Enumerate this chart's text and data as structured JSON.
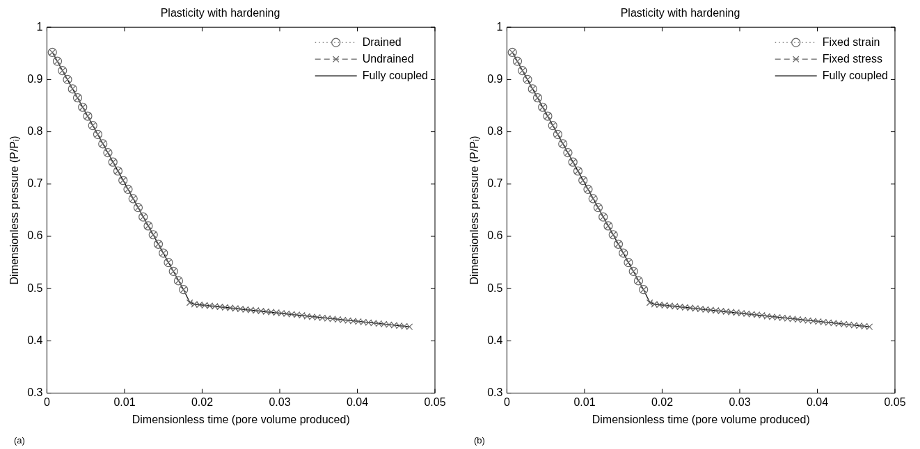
{
  "chart_data": [
    {
      "type": "line",
      "title": "Plasticity with hardening",
      "xlabel": "Dimensionless time (pore volume produced)",
      "ylabel": "Dimensionless pressure (P/Pᵢ)",
      "xlim": [
        0,
        0.05
      ],
      "xticks": [
        0,
        0.01,
        0.02,
        0.03,
        0.04,
        0.05
      ],
      "ylim": [
        0.3,
        1
      ],
      "yticks": [
        0.3,
        0.4,
        0.5,
        0.6,
        0.7,
        0.8,
        0.9,
        1
      ],
      "legend": "top right",
      "grid": false,
      "annotations": [
        "(a)"
      ],
      "series": [
        {
          "name": "Drained",
          "color": "#666666",
          "marker": "circle",
          "line_style": "dotted",
          "x": [
            0.0007,
            0.00135,
            0.002,
            0.00265,
            0.0033,
            0.00395,
            0.0046,
            0.00525,
            0.0059,
            0.00655,
            0.0072,
            0.00785,
            0.0085,
            0.00915,
            0.0098,
            0.01045,
            0.0111,
            0.01175,
            0.0124,
            0.01305,
            0.0137,
            0.01435,
            0.015,
            0.01565,
            0.0163,
            0.01695,
            0.0176
          ],
          "values": [
            0.952,
            0.935,
            0.917,
            0.9,
            0.882,
            0.865,
            0.847,
            0.83,
            0.812,
            0.795,
            0.777,
            0.76,
            0.742,
            0.725,
            0.707,
            0.69,
            0.672,
            0.655,
            0.637,
            0.62,
            0.603,
            0.585,
            0.568,
            0.55,
            0.533,
            0.515,
            0.498
          ]
        },
        {
          "name": "Undrained",
          "color": "#666666",
          "marker": "cross",
          "line_style": "dashed",
          "x": [
            0.0007,
            0.00135,
            0.002,
            0.00265,
            0.0033,
            0.00395,
            0.0046,
            0.00525,
            0.0059,
            0.00655,
            0.0072,
            0.00785,
            0.0085,
            0.00915,
            0.0098,
            0.01045,
            0.0111,
            0.01175,
            0.0124,
            0.01305,
            0.0137,
            0.01435,
            0.015,
            0.01565,
            0.0163,
            0.01695,
            0.0176,
            0.0184,
            0.019,
            0.01966,
            0.02032,
            0.02098,
            0.02164,
            0.0223,
            0.02296,
            0.02362,
            0.02428,
            0.02494,
            0.0256,
            0.02626,
            0.02692,
            0.02758,
            0.02824,
            0.0289,
            0.02956,
            0.03022,
            0.03088,
            0.03154,
            0.0322,
            0.03286,
            0.03352,
            0.03418,
            0.03484,
            0.0355,
            0.03616,
            0.03682,
            0.03748,
            0.03814,
            0.0388,
            0.03946,
            0.04012,
            0.04078,
            0.04144,
            0.0421,
            0.04276,
            0.04342,
            0.04408,
            0.04474,
            0.0454,
            0.04606,
            0.04672
          ],
          "values": [
            0.952,
            0.935,
            0.917,
            0.9,
            0.882,
            0.865,
            0.847,
            0.83,
            0.812,
            0.795,
            0.777,
            0.76,
            0.742,
            0.725,
            0.707,
            0.69,
            0.672,
            0.655,
            0.637,
            0.62,
            0.603,
            0.585,
            0.568,
            0.55,
            0.533,
            0.515,
            0.498,
            0.473,
            0.47,
            0.469,
            0.468,
            0.467,
            0.466,
            0.465,
            0.464,
            0.463,
            0.462,
            0.461,
            0.46,
            0.459,
            0.458,
            0.457,
            0.456,
            0.455,
            0.454,
            0.453,
            0.452,
            0.451,
            0.45,
            0.449,
            0.447,
            0.446,
            0.445,
            0.444,
            0.443,
            0.442,
            0.441,
            0.44,
            0.439,
            0.438,
            0.437,
            0.436,
            0.435,
            0.434,
            0.433,
            0.432,
            0.431,
            0.43,
            0.429,
            0.428,
            0.427
          ]
        },
        {
          "name": "Fully coupled",
          "color": "#000000",
          "marker": "none",
          "line_style": "solid",
          "x": [
            0.0007,
            0.0176,
            0.0184,
            0.019,
            0.0467
          ],
          "values": [
            0.952,
            0.498,
            0.474,
            0.47,
            0.427
          ]
        }
      ]
    },
    {
      "type": "line",
      "title": "Plasticity with hardening",
      "xlabel": "Dimensionless time (pore volume produced)",
      "ylabel": "Dimensionless pressure (P/Pᵢ)",
      "xlim": [
        0,
        0.05
      ],
      "xticks": [
        0,
        0.01,
        0.02,
        0.03,
        0.04,
        0.05
      ],
      "ylim": [
        0.3,
        1
      ],
      "yticks": [
        0.3,
        0.4,
        0.5,
        0.6,
        0.7,
        0.8,
        0.9,
        1
      ],
      "legend": "top right",
      "grid": false,
      "annotations": [
        "(b)"
      ],
      "series": [
        {
          "name": "Fixed strain",
          "color": "#666666",
          "marker": "circle",
          "line_style": "dotted",
          "x": [
            0.0007,
            0.00135,
            0.002,
            0.00265,
            0.0033,
            0.00395,
            0.0046,
            0.00525,
            0.0059,
            0.00655,
            0.0072,
            0.00785,
            0.0085,
            0.00915,
            0.0098,
            0.01045,
            0.0111,
            0.01175,
            0.0124,
            0.01305,
            0.0137,
            0.01435,
            0.015,
            0.01565,
            0.0163,
            0.01695,
            0.0176
          ],
          "values": [
            0.952,
            0.935,
            0.917,
            0.9,
            0.882,
            0.865,
            0.847,
            0.83,
            0.812,
            0.795,
            0.777,
            0.76,
            0.742,
            0.725,
            0.707,
            0.69,
            0.672,
            0.655,
            0.637,
            0.62,
            0.603,
            0.585,
            0.568,
            0.55,
            0.533,
            0.515,
            0.498
          ]
        },
        {
          "name": "Fixed stress",
          "color": "#666666",
          "marker": "cross",
          "line_style": "dashed",
          "x": [
            0.0007,
            0.00135,
            0.002,
            0.00265,
            0.0033,
            0.00395,
            0.0046,
            0.00525,
            0.0059,
            0.00655,
            0.0072,
            0.00785,
            0.0085,
            0.00915,
            0.0098,
            0.01045,
            0.0111,
            0.01175,
            0.0124,
            0.01305,
            0.0137,
            0.01435,
            0.015,
            0.01565,
            0.0163,
            0.01695,
            0.0176,
            0.0184,
            0.019,
            0.01966,
            0.02032,
            0.02098,
            0.02164,
            0.0223,
            0.02296,
            0.02362,
            0.02428,
            0.02494,
            0.0256,
            0.02626,
            0.02692,
            0.02758,
            0.02824,
            0.0289,
            0.02956,
            0.03022,
            0.03088,
            0.03154,
            0.0322,
            0.03286,
            0.03352,
            0.03418,
            0.03484,
            0.0355,
            0.03616,
            0.03682,
            0.03748,
            0.03814,
            0.0388,
            0.03946,
            0.04012,
            0.04078,
            0.04144,
            0.0421,
            0.04276,
            0.04342,
            0.04408,
            0.04474,
            0.0454,
            0.04606,
            0.04672
          ],
          "values": [
            0.952,
            0.935,
            0.917,
            0.9,
            0.882,
            0.865,
            0.847,
            0.83,
            0.812,
            0.795,
            0.777,
            0.76,
            0.742,
            0.725,
            0.707,
            0.69,
            0.672,
            0.655,
            0.637,
            0.62,
            0.603,
            0.585,
            0.568,
            0.55,
            0.533,
            0.515,
            0.498,
            0.473,
            0.47,
            0.469,
            0.468,
            0.467,
            0.466,
            0.465,
            0.464,
            0.463,
            0.462,
            0.461,
            0.46,
            0.459,
            0.458,
            0.457,
            0.456,
            0.455,
            0.454,
            0.453,
            0.452,
            0.451,
            0.45,
            0.449,
            0.447,
            0.446,
            0.445,
            0.444,
            0.443,
            0.442,
            0.441,
            0.44,
            0.439,
            0.438,
            0.437,
            0.436,
            0.435,
            0.434,
            0.433,
            0.432,
            0.431,
            0.43,
            0.429,
            0.428,
            0.427
          ]
        },
        {
          "name": "Fully coupled",
          "color": "#000000",
          "marker": "none",
          "line_style": "solid",
          "x": [
            0.0007,
            0.0176,
            0.0184,
            0.019,
            0.0467
          ],
          "values": [
            0.952,
            0.498,
            0.474,
            0.47,
            0.427
          ]
        }
      ]
    }
  ]
}
